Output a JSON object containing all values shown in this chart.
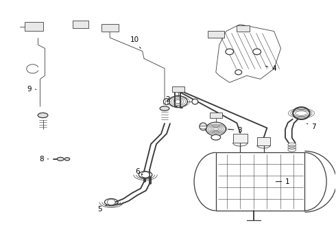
{
  "background_color": "#ffffff",
  "line_color": "#3a3a3a",
  "label_color": "#000000",
  "figure_width": 4.9,
  "figure_height": 3.6,
  "dpi": 100
}
